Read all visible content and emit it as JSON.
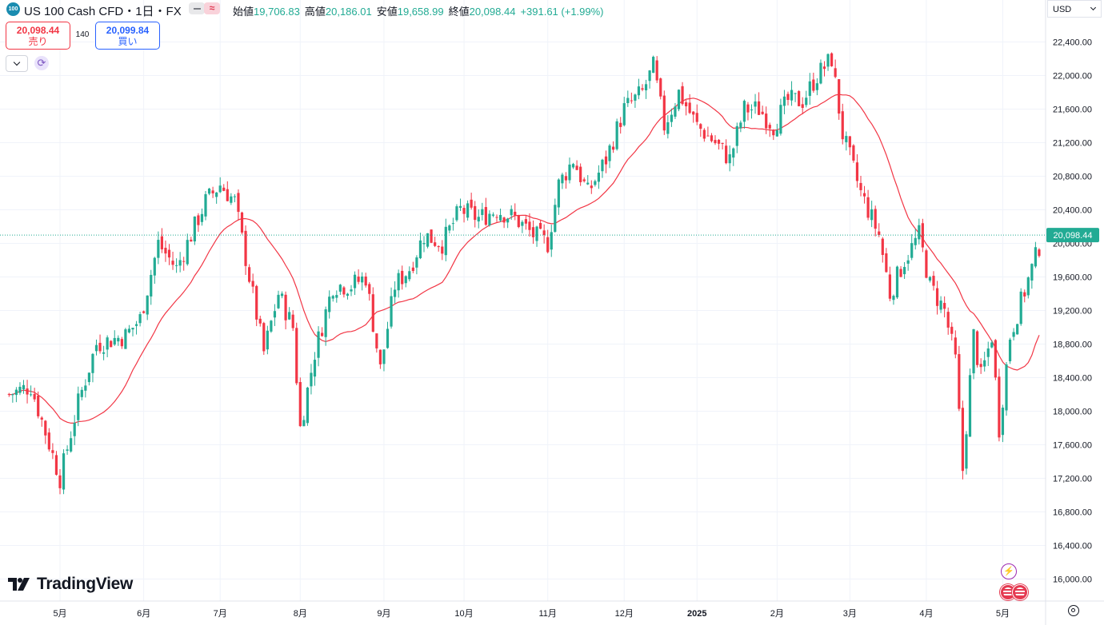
{
  "header": {
    "symbol_icon": "100",
    "title": "US 100 Cash CFD・1日・FX",
    "open_label": "始値",
    "open_value": "19,706.83",
    "high_label": "高値",
    "high_value": "20,186.01",
    "low_label": "安値",
    "low_value": "19,658.99",
    "close_label": "終値",
    "close_value": "20,098.44",
    "change": "+391.61 (+1.99%)"
  },
  "trade": {
    "sell_price": "20,098.44",
    "sell_label": "売り",
    "spread": "140",
    "buy_price": "20,099.84",
    "buy_label": "買い"
  },
  "currency": "USD",
  "logo": "TradingView",
  "colors": {
    "up": "#22ab94",
    "down": "#f23645",
    "ma": "#f23645",
    "last_price_line": "#22ab94",
    "price_label_bg": "#22ab94"
  },
  "icons": [
    "collapse-icon",
    "refresh-icon",
    "lightning-event-icon",
    "us-flag-event-icon",
    "settings-gear-icon"
  ],
  "chart_data": {
    "type": "candlestick",
    "symbol": "US 100 Cash CFD",
    "interval": "1日",
    "y_axis": {
      "ticks": [
        16000,
        16400,
        16800,
        17200,
        17600,
        18000,
        18400,
        18800,
        19200,
        19600,
        20000,
        20400,
        20800,
        21200,
        21600,
        22000,
        22400
      ],
      "tick_labels": [
        "16,000.00",
        "16,400.00",
        "16,800.00",
        "17,200.00",
        "17,600.00",
        "18,000.00",
        "18,400.00",
        "18,800.00",
        "19,200.00",
        "19,600.00",
        "20,000.00",
        "20,400.00",
        "20,800.00",
        "21,200.00",
        "21,600.00",
        "22,000.00",
        "22,400.00"
      ],
      "range": [
        15750,
        22800
      ]
    },
    "x_axis": {
      "tick_labels": [
        "5月",
        "6月",
        "7月",
        "8月",
        "9月",
        "10月",
        "11月",
        "12月",
        "2025",
        "2月",
        "3月",
        "4月",
        "5月"
      ],
      "tick_days": [
        0,
        23,
        44,
        66,
        89,
        111,
        134,
        155,
        175,
        197,
        217,
        238,
        259
      ]
    },
    "last_price": 20098.44,
    "last_price_label": "20,098.44",
    "grid": true,
    "moving_average": "red line",
    "series_points": [
      [
        -14,
        18200
      ],
      [
        -8,
        18300
      ],
      [
        0,
        17200
      ],
      [
        5,
        18100
      ],
      [
        10,
        18800
      ],
      [
        18,
        18900
      ],
      [
        22,
        19100
      ],
      [
        27,
        20000
      ],
      [
        32,
        19700
      ],
      [
        40,
        20500
      ],
      [
        44,
        20700
      ],
      [
        48,
        20500
      ],
      [
        52,
        19600
      ],
      [
        56,
        18700
      ],
      [
        60,
        19400
      ],
      [
        64,
        19000
      ],
      [
        66,
        17800
      ],
      [
        70,
        18700
      ],
      [
        75,
        19500
      ],
      [
        80,
        19500
      ],
      [
        84,
        19600
      ],
      [
        88,
        18500
      ],
      [
        92,
        19500
      ],
      [
        96,
        19700
      ],
      [
        100,
        20100
      ],
      [
        105,
        20000
      ],
      [
        110,
        20400
      ],
      [
        115,
        20300
      ],
      [
        120,
        20400
      ],
      [
        125,
        20300
      ],
      [
        130,
        20100
      ],
      [
        134,
        20000
      ],
      [
        137,
        20700
      ],
      [
        141,
        21000
      ],
      [
        145,
        20600
      ],
      [
        150,
        21000
      ],
      [
        155,
        21600
      ],
      [
        160,
        21800
      ],
      [
        163,
        22100
      ],
      [
        166,
        21400
      ],
      [
        170,
        21800
      ],
      [
        175,
        21400
      ],
      [
        180,
        21200
      ],
      [
        184,
        21000
      ],
      [
        188,
        21600
      ],
      [
        192,
        21600
      ],
      [
        196,
        21400
      ],
      [
        200,
        21700
      ],
      [
        204,
        21700
      ],
      [
        208,
        22000
      ],
      [
        212,
        22200
      ],
      [
        215,
        21300
      ],
      [
        220,
        20600
      ],
      [
        225,
        20100
      ],
      [
        228,
        19400
      ],
      [
        232,
        19800
      ],
      [
        236,
        20100
      ],
      [
        239,
        19500
      ],
      [
        243,
        19200
      ],
      [
        246,
        18600
      ],
      [
        248,
        17300
      ],
      [
        251,
        18900
      ],
      [
        253,
        18400
      ],
      [
        256,
        18900
      ],
      [
        258,
        17800
      ],
      [
        261,
        18900
      ],
      [
        264,
        19300
      ],
      [
        267,
        19700
      ],
      [
        270,
        20098
      ]
    ]
  }
}
